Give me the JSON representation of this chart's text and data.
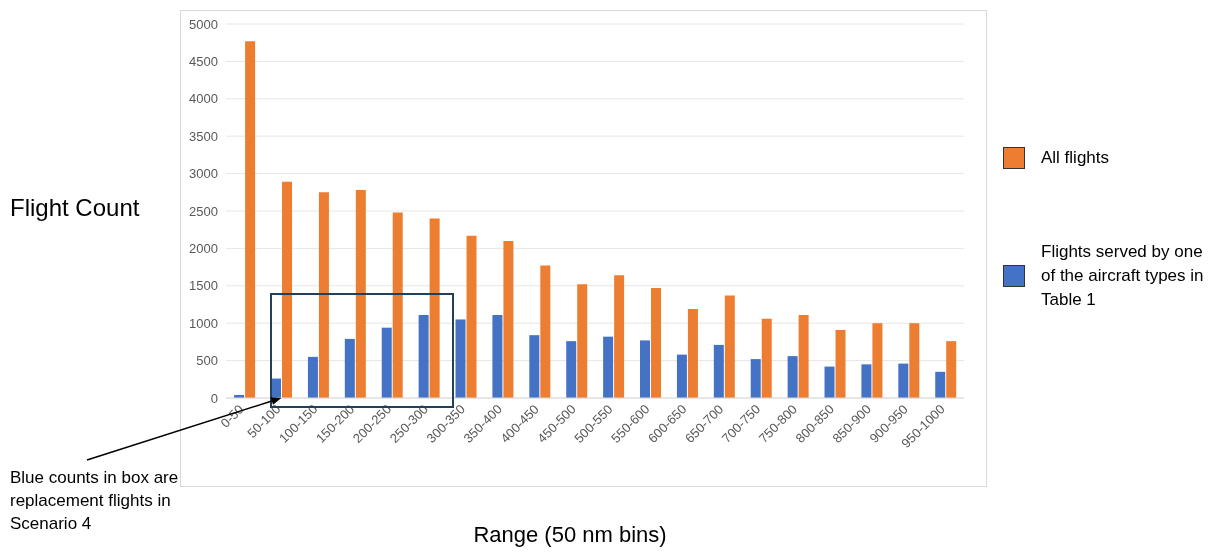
{
  "chart_data": {
    "type": "bar",
    "xlabel": "Range (50 nm bins)",
    "ylabel": "Flight Count",
    "categories": [
      "0-50",
      "50-100",
      "100-150",
      "150-200",
      "200-250",
      "250-300",
      "300-350",
      "350-400",
      "400-450",
      "450-500",
      "500-550",
      "550-600",
      "600-650",
      "650-700",
      "700-750",
      "750-800",
      "800-850",
      "850-900",
      "900-950",
      "950-1000"
    ],
    "series": [
      {
        "name": "Flights served by one of the aircraft types in Table 1",
        "color": "#4472c4",
        "values": [
          40,
          260,
          550,
          790,
          940,
          1110,
          1050,
          1110,
          840,
          760,
          820,
          770,
          580,
          710,
          520,
          560,
          420,
          450,
          460,
          350
        ]
      },
      {
        "name": "All flights",
        "color": "#ed7d31",
        "values": [
          4770,
          2890,
          2750,
          2780,
          2480,
          2400,
          2170,
          2100,
          1770,
          1520,
          1640,
          1470,
          1190,
          1370,
          1060,
          1110,
          910,
          1000,
          1000,
          760
        ]
      }
    ],
    "ylim": [
      0,
      5000
    ],
    "yticks": [
      0,
      500,
      1000,
      1500,
      2000,
      2500,
      3000,
      3500,
      4000,
      4500,
      5000
    ],
    "grid": "y",
    "legend": "right",
    "annotations": [
      {
        "text": "Blue counts in box are replacement flights in Scenario 4",
        "x": "50-100",
        "y": 0
      }
    ]
  }
}
